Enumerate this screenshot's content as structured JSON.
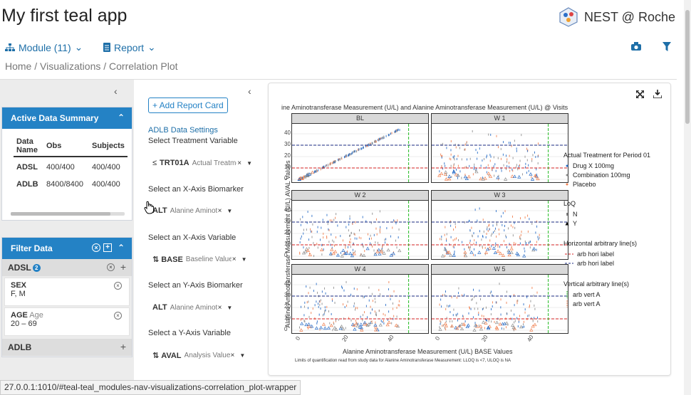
{
  "app": {
    "title": "My first teal app",
    "brand": "NEST @ Roche"
  },
  "nav": {
    "module": "Module (11)",
    "report": "Report"
  },
  "breadcrumb": "Home / Visualizations / Correlation Plot",
  "active_data_summary": {
    "title": "Active Data Summary",
    "headers": [
      "Data Name",
      "Obs",
      "Subjects"
    ],
    "rows": [
      [
        "ADSL",
        "400/400",
        "400/400"
      ],
      [
        "ADLB",
        "8400/8400",
        "400/400"
      ]
    ]
  },
  "filter_data": {
    "title": "Filter Data",
    "adsl": {
      "name": "ADSL",
      "badge": "2",
      "filters": [
        {
          "name": "SEX",
          "label": "",
          "value": "F, M"
        },
        {
          "name": "AGE",
          "label": "Age",
          "value": "20 – 69"
        }
      ]
    },
    "adlb": {
      "name": "ADLB"
    }
  },
  "encoding": {
    "add_report": "+ Add Report Card",
    "settings_title": "ADLB Data Settings",
    "fields": [
      {
        "label": "Select Treatment Variable",
        "icon": "≤",
        "value": "TRT01A",
        "value_label": "Actual Treatment for Period 01"
      },
      {
        "label": "Select an X-Axis Biomarker",
        "icon": "",
        "value": "ALT",
        "value_label": "Alanine Aminotransferase Measurement"
      },
      {
        "label": "Select an X-Axis Variable",
        "icon": "⇅",
        "value": "BASE",
        "value_label": "Baseline Value"
      },
      {
        "label": "Select an Y-Axis Biomarker",
        "icon": "",
        "value": "ALT",
        "value_label": "Alanine Aminotransferase Measurement"
      },
      {
        "label": "Select a Y-Axis Variable",
        "icon": "⇅",
        "value": "AVAL",
        "value_label": "Analysis Value"
      }
    ]
  },
  "plot": {
    "title": "ine Aminotransferase Measurement (U/L) and Alanine Aminotransferase Measurement (U/L) @ Visits",
    "xlabel": "Alanine Aminotransferase Measurement (U/L) BASE Values",
    "ylabel": "Alanine Aminotransferase Measurement (U/L) AVAL Values",
    "footnote": "Limits of quantification read from study data for Alanine Aminotransferase Measurement: LLOQ is <7, ULOQ is NA",
    "facets": [
      "BL",
      "W 1",
      "W 2",
      "W 3",
      "W 4",
      "W 5"
    ],
    "y_ticks": [
      "0",
      "10",
      "20",
      "30",
      "40"
    ],
    "x_ticks": [
      "0",
      "20",
      "40"
    ],
    "legend": {
      "treatment_title": "Actual Treatment for Period 01",
      "treatments": [
        {
          "name": "Drug X 100mg",
          "color": "#2b6fc8"
        },
        {
          "name": "Combination 100mg",
          "color": "#8f8f8f"
        },
        {
          "name": "Placebo",
          "color": "#f08050"
        }
      ],
      "loq_title": "LoQ",
      "loq": [
        "N",
        "Y"
      ],
      "hline_title": "Horizontal arbitrary line(s)",
      "hlines": [
        {
          "name": "arb hori label",
          "color": "#d42020"
        },
        {
          "name": "arb hori label",
          "color": "#1a2a80"
        }
      ],
      "vline_title": "Vertical arbitrary line(s)",
      "vlines": [
        {
          "name": "arb vert A",
          "color": "#22bb22"
        },
        {
          "name": "arb vert A",
          "color": "#f08050"
        }
      ]
    }
  },
  "status_url": "27.0.0.1:1010/#teal-teal_modules-nav-visualizations-correlation_plot-wrapper"
}
